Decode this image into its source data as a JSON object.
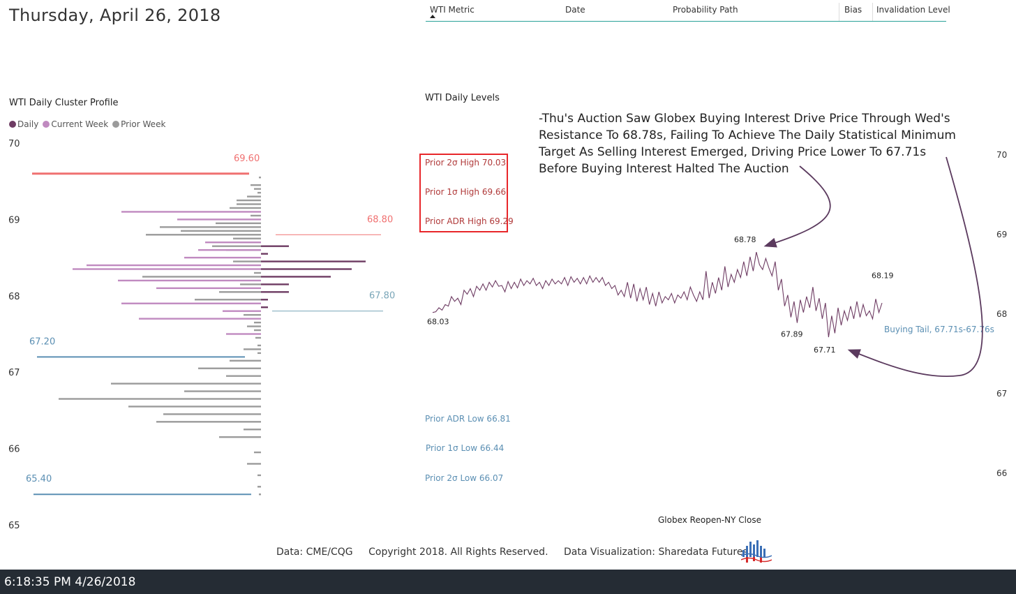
{
  "header": {
    "date": "Thursday, April 26, 2018"
  },
  "table": {
    "columns": [
      "WTI Metric",
      "Date",
      "Probability Path",
      "Bias",
      "Invalidation Level"
    ]
  },
  "profile": {
    "title": "WTI Daily Cluster Profile",
    "legend": [
      {
        "label": "Daily",
        "color": "#6e3c63"
      },
      {
        "label": "Current Week",
        "color": "#c08ac0"
      },
      {
        "label": "Prior Week",
        "color": "#9b9b9b"
      }
    ],
    "y_ticks": [
      "70",
      "69",
      "68",
      "67",
      "66",
      "65"
    ],
    "level_labels": [
      "69.60",
      "68.80",
      "67.80",
      "67.20",
      "65.40"
    ]
  },
  "levels": {
    "title": "WTI Daily Levels",
    "prior_high": [
      "Prior 2σ High 70.03",
      "Prior 1σ High 69.66",
      "Prior ADR High 69.29"
    ],
    "prior_low": [
      "Prior ADR Low 66.81",
      "Prior 1σ Low 66.44",
      "Prior 2σ Low 66.07"
    ],
    "annotation": [
      "-Thu's Auction Saw Globex Buying Interest Drive Price Through Wed's",
      "Resistance To 68.78s, Failing To Achieve The Daily Statistical Minimum",
      "Target As Selling Interest Emerged, Driving  Price Lower To 67.71s",
      "Before Buying Interest Halted The Auction"
    ],
    "x_label": "Globex Reopen-NY Close",
    "y_ticks": [
      "70",
      "69",
      "68",
      "67",
      "66"
    ],
    "buying_tail": "Buying Tail, 67.71s-67.76s",
    "price_labels": [
      "68.03",
      "68.78",
      "67.89",
      "67.71",
      "68.19"
    ]
  },
  "chart_data": [
    {
      "type": "bar",
      "orientation": "horizontal",
      "title": "WTI Daily Cluster Profile",
      "xlabel": "",
      "ylabel": "",
      "ylim": [
        65,
        70
      ],
      "legend_position": "top-left",
      "series": [
        {
          "name": "Daily",
          "side": "right",
          "color": "#6e3c63",
          "prices": [
            68.65,
            68.55,
            68.45,
            68.35,
            68.25,
            68.15,
            68.05,
            67.95,
            67.85
          ],
          "values": [
            40,
            10,
            150,
            130,
            100,
            40,
            40,
            10,
            10
          ]
        },
        {
          "name": "Current Week",
          "side": "left",
          "color": "#c08ac0",
          "prices": [
            69.1,
            69.0,
            68.7,
            68.6,
            68.5,
            68.4,
            68.35,
            68.2,
            68.1,
            67.9,
            67.8,
            67.7,
            67.5
          ],
          "values": [
            200,
            120,
            80,
            90,
            110,
            250,
            270,
            205,
            150,
            200,
            55,
            175,
            50
          ]
        },
        {
          "name": "Prior Week",
          "side": "left",
          "color": "#9b9b9b",
          "prices": [
            69.55,
            69.45,
            69.4,
            69.35,
            69.3,
            69.25,
            69.2,
            69.15,
            69.05,
            68.95,
            68.9,
            68.85,
            68.8,
            68.75,
            68.7,
            68.65,
            68.6,
            68.45,
            68.3,
            68.25,
            68.15,
            68.05,
            67.95,
            67.75,
            67.65,
            67.6,
            67.55,
            67.45,
            67.35,
            67.3,
            67.25,
            67.15,
            67.05,
            66.95,
            66.85,
            66.75,
            66.65,
            66.55,
            66.45,
            66.35,
            66.25,
            66.15,
            65.95,
            65.8,
            65.65,
            65.5,
            65.4
          ],
          "values": [
            3,
            15,
            10,
            5,
            20,
            35,
            35,
            45,
            15,
            65,
            145,
            115,
            165,
            40,
            30,
            70,
            50,
            40,
            10,
            170,
            30,
            60,
            95,
            25,
            10,
            20,
            10,
            8,
            5,
            25,
            5,
            45,
            90,
            50,
            215,
            110,
            290,
            190,
            140,
            150,
            25,
            60,
            10,
            20,
            5,
            5,
            3
          ]
        }
      ],
      "reference_lines": [
        {
          "value": 69.6,
          "label": "69.60",
          "color": "#f07070"
        },
        {
          "value": 68.8,
          "label": "68.80",
          "color": "#f07070"
        },
        {
          "value": 67.8,
          "label": "67.80",
          "color": "#7aa6b8"
        },
        {
          "value": 67.2,
          "label": "67.20",
          "color": "#5b8fb3"
        },
        {
          "value": 65.4,
          "label": "65.40",
          "color": "#5b8fb3"
        }
      ]
    },
    {
      "type": "line",
      "title": "WTI Daily Levels",
      "xlabel": "Globex Reopen-NY Close",
      "ylabel": "",
      "ylim": [
        65.5,
        70.2
      ],
      "series": [
        {
          "name": "",
          "color": "#6e3c63",
          "values": [
            68.02,
            68.03,
            68.08,
            68.05,
            68.12,
            68.1,
            68.22,
            68.16,
            68.2,
            68.12,
            68.3,
            68.25,
            68.32,
            68.22,
            68.35,
            68.3,
            68.38,
            68.3,
            68.4,
            68.34,
            68.42,
            68.35,
            68.36,
            68.28,
            68.41,
            68.32,
            68.4,
            68.33,
            68.44,
            68.36,
            68.42,
            68.38,
            68.45,
            68.36,
            68.4,
            68.32,
            68.42,
            68.36,
            68.44,
            68.38,
            68.42,
            68.38,
            68.46,
            68.36,
            68.47,
            68.4,
            68.45,
            68.38,
            68.46,
            68.38,
            68.48,
            68.4,
            68.46,
            68.4,
            68.46,
            68.36,
            68.4,
            68.32,
            68.36,
            68.24,
            68.3,
            68.22,
            68.4,
            68.2,
            68.38,
            68.16,
            68.32,
            68.18,
            68.34,
            68.12,
            68.26,
            68.1,
            68.28,
            68.14,
            68.22,
            68.18,
            68.26,
            68.14,
            68.24,
            68.2,
            68.28,
            68.18,
            68.34,
            68.24,
            68.16,
            68.28,
            68.18,
            68.54,
            68.2,
            68.4,
            68.26,
            68.46,
            68.3,
            68.6,
            68.34,
            68.5,
            68.4,
            68.56,
            68.46,
            68.66,
            68.48,
            68.72,
            68.54,
            68.78,
            68.62,
            68.56,
            68.7,
            68.58,
            68.48,
            68.66,
            68.3,
            68.44,
            68.1,
            68.24,
            67.96,
            68.16,
            67.89,
            68.18,
            68.02,
            68.22,
            68.08,
            68.34,
            68.04,
            68.2,
            67.94,
            68.14,
            67.71,
            67.98,
            67.76,
            68.08,
            67.86,
            68.04,
            67.92,
            68.1,
            67.94,
            68.16,
            67.96,
            68.12,
            67.98,
            68.04,
            67.94,
            68.19,
            68.02,
            68.14
          ]
        }
      ],
      "reference_levels": [
        {
          "label": "Prior 2σ High 70.03",
          "value": 70.03
        },
        {
          "label": "Prior 1σ High 69.66",
          "value": 69.66
        },
        {
          "label": "Prior ADR High 69.29",
          "value": 69.29
        },
        {
          "label": "Prior ADR Low 66.81",
          "value": 66.81
        },
        {
          "label": "Prior 1σ Low 66.44",
          "value": 66.44
        },
        {
          "label": "Prior 2σ Low 66.07",
          "value": 66.07
        }
      ],
      "price_labels": [
        {
          "label": "68.03",
          "value": 68.03
        },
        {
          "label": "68.78",
          "value": 68.78
        },
        {
          "label": "67.89",
          "value": 67.89
        },
        {
          "label": "67.71",
          "value": 67.71
        },
        {
          "label": "68.19",
          "value": 68.19
        }
      ]
    }
  ],
  "footer": {
    "source": "Data: CME/CQG",
    "copyright": "Copyright 2018. All Rights Reserved.",
    "credit": "Data Visualization: Sharedata Futures"
  },
  "statusbar": {
    "clock": "6:18:35 PM 4/26/2018"
  },
  "colors": {
    "accent": "#2aa198",
    "high_levels": "#b03a3a",
    "low_levels": "#5b8fb3",
    "line": "#6e3c63",
    "statusbar_bg": "#252c34"
  },
  "icons": {
    "logo": "sharedata-logo-icon",
    "sort": "sort-ascending-icon"
  }
}
